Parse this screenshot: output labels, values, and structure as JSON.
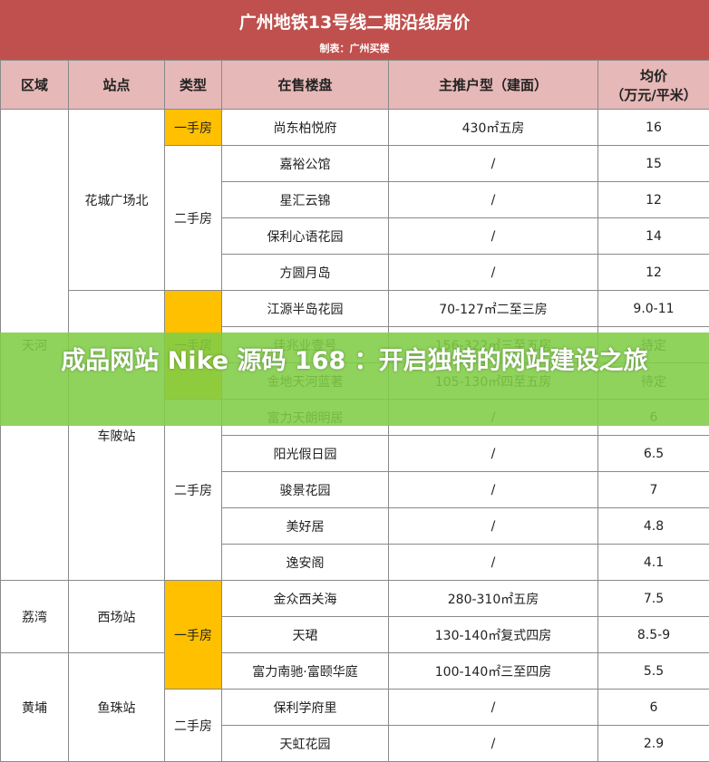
{
  "header": {
    "title": "广州地铁13号线二期沿线房价",
    "subtitle": "制表：广州买楼"
  },
  "table": {
    "columns": [
      "区域",
      "站点",
      "类型",
      "在售楼盘",
      "主推户型（建面）",
      [
        "均价",
        "（万元/平米）"
      ]
    ],
    "rows": [
      [
        "天河",
        "花城广场北",
        "一手房",
        "尚东柏悦府",
        "430㎡五房",
        "16"
      ],
      [
        null,
        null,
        "二手房",
        "嘉裕公馆",
        "/",
        "15"
      ],
      [
        null,
        null,
        null,
        "星汇云锦",
        "/",
        "12"
      ],
      [
        null,
        null,
        null,
        "保利心语花园",
        "/",
        "14"
      ],
      [
        null,
        null,
        null,
        "方圆月岛",
        "/",
        "12"
      ],
      [
        null,
        "车陂站",
        "一手房",
        "江源半岛花园",
        "70-127㎡二至三房",
        "9.0-11"
      ],
      [
        null,
        null,
        null,
        "佳兆业壹号",
        "156-322㎡三至五房",
        "待定"
      ],
      [
        null,
        null,
        null,
        "金地天河蓝著",
        "105-130㎡四至五房",
        "待定"
      ],
      [
        null,
        null,
        "二手房",
        "富力天朗明居",
        "/",
        "6"
      ],
      [
        null,
        null,
        null,
        "阳光假日园",
        "/",
        "6.5"
      ],
      [
        null,
        null,
        null,
        "骏景花园",
        "/",
        "7"
      ],
      [
        null,
        null,
        null,
        "美好居",
        "/",
        "4.8"
      ],
      [
        null,
        null,
        null,
        "逸安阁",
        "/",
        "4.1"
      ],
      [
        "荔湾",
        "西场站",
        "一手房",
        "金众西关海",
        "280-310㎡五房",
        "7.5"
      ],
      [
        null,
        null,
        null,
        "天珺",
        "130-140㎡复式四房",
        "8.5-9"
      ],
      [
        "黄埔",
        "鱼珠站",
        null,
        "富力南驰·富颐华庭",
        "100-140㎡三至四房",
        "5.5"
      ],
      [
        null,
        null,
        "二手房",
        "保利学府里",
        "/",
        "6"
      ],
      [
        null,
        null,
        null,
        "天虹花园",
        "/",
        "2.9"
      ]
    ]
  },
  "banner": "成品网站 Nike 源码 168 ：开启独特的网站建设之旅"
}
